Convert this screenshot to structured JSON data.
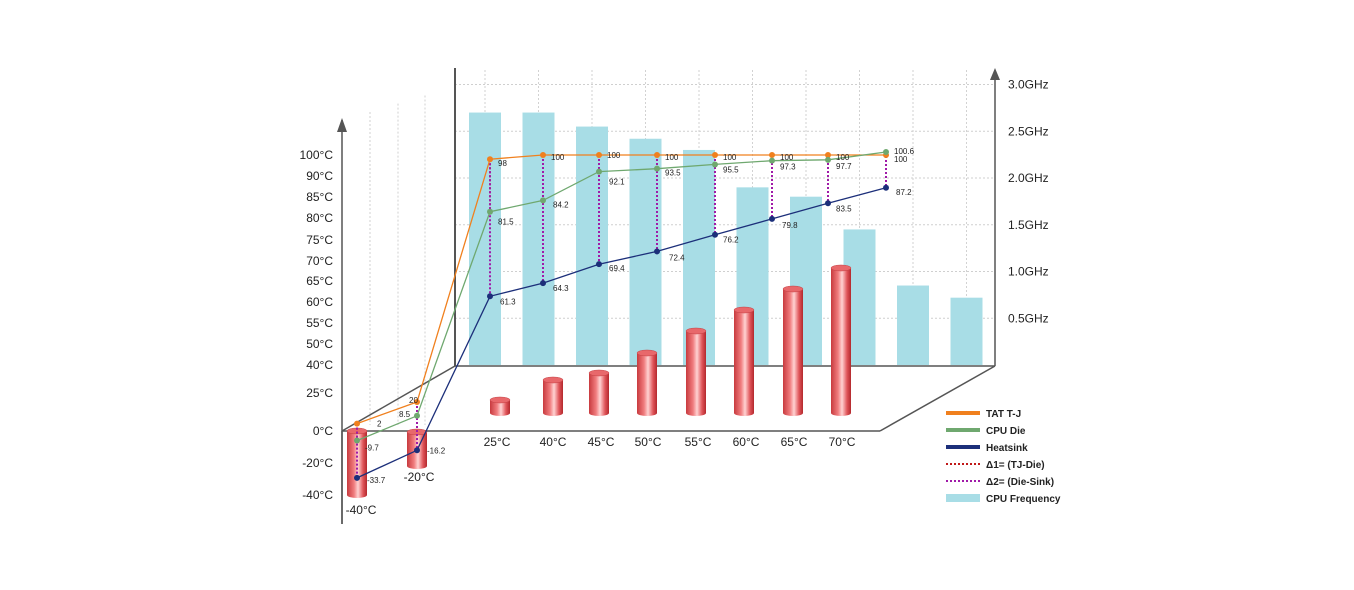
{
  "chart_data": {
    "type": "line",
    "title": "",
    "categories": [
      "-40°C",
      "-20°C",
      "25°C",
      "40°C",
      "45°C",
      "50°C",
      "55°C",
      "60°C",
      "65°C",
      "70°C"
    ],
    "temp_axis_ticks": [
      "100°C",
      "90°C",
      "85°C",
      "80°C",
      "75°C",
      "70°C",
      "65°C",
      "60°C",
      "55°C",
      "50°C",
      "40°C",
      "25°C",
      "0°C",
      "-20°C",
      "-40°C"
    ],
    "freq_axis_ticks": [
      "3.0GHz",
      "2.5GHz",
      "2.0GHz",
      "1.5GHz",
      "1.0GHz",
      "0.5GHz"
    ],
    "series": [
      {
        "name": "TAT T-J",
        "color": "#f0801e",
        "values": [
          2,
          20,
          98,
          100,
          100,
          100,
          100,
          100,
          100,
          100
        ]
      },
      {
        "name": "CPU Die",
        "color": "#6fa86f",
        "values": [
          -9.7,
          8.5,
          81.5,
          84.2,
          92.1,
          93.5,
          95.5,
          97.3,
          97.7,
          100.6
        ]
      },
      {
        "name": "Heatsink",
        "color": "#1c2f7a",
        "values": [
          -33.7,
          -16.2,
          61.3,
          64.3,
          69.4,
          72.4,
          76.2,
          79.8,
          83.5,
          87.2
        ]
      }
    ],
    "bars": {
      "name": "CPU Frequency",
      "color": "#a8dde6",
      "unit": "GHz",
      "values": [
        2.7,
        2.7,
        2.55,
        2.42,
        2.3,
        1.9,
        1.8,
        1.45,
        0.85,
        0.72
      ]
    },
    "ambient_cylinders": {
      "color": "#e05255",
      "values": [
        -40,
        -20,
        25,
        40,
        45,
        50,
        55,
        60,
        65,
        70
      ]
    },
    "legend": [
      {
        "label": "TAT T-J",
        "style": "line",
        "color": "#f0801e"
      },
      {
        "label": "CPU Die",
        "style": "line",
        "color": "#6fa86f"
      },
      {
        "label": "Heatsink",
        "style": "line",
        "color": "#1c2f7a"
      },
      {
        "label": "Δ1= (TJ-Die)",
        "style": "dotted",
        "color": "#c01818"
      },
      {
        "label": "Δ2= (Die-Sink)",
        "style": "dotted",
        "color": "#a01aa8"
      },
      {
        "label": "CPU Frequency",
        "style": "block",
        "color": "#a8dde6"
      }
    ],
    "legend_placement": "bottom-right",
    "grid": true
  }
}
